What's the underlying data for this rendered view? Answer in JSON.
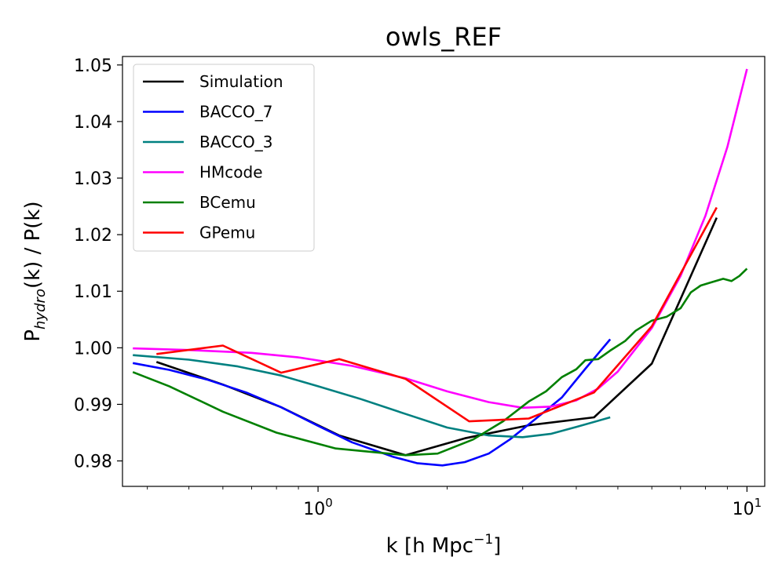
{
  "chart_data": {
    "type": "line",
    "title": "owls_REF",
    "xlabel": "k [h Mpc",
    "xlabel_sup": "−1",
    "xlabel_end": "]",
    "ylabel_main": "P",
    "ylabel_sub": "hydro",
    "ylabel_rest": "(k) / P(k)",
    "xscale": "log",
    "xlim": [
      0.35,
      11.0
    ],
    "ylim": [
      0.9755,
      1.0515
    ],
    "grid": false,
    "legend_position": "top-left",
    "x_ticks": [
      {
        "value": 1,
        "base": "10",
        "exp": "0"
      },
      {
        "value": 10,
        "base": "10",
        "exp": "1"
      }
    ],
    "y_ticks": [
      {
        "value": 0.98,
        "label": "0.98"
      },
      {
        "value": 0.99,
        "label": "0.99"
      },
      {
        "value": 1.0,
        "label": "1.00"
      },
      {
        "value": 1.01,
        "label": "1.01"
      },
      {
        "value": 1.02,
        "label": "1.02"
      },
      {
        "value": 1.03,
        "label": "1.03"
      },
      {
        "value": 1.04,
        "label": "1.04"
      },
      {
        "value": 1.05,
        "label": "1.05"
      }
    ],
    "series": [
      {
        "name": "Simulation",
        "color": "#000000",
        "x": [
          0.42,
          0.6,
          0.82,
          1.12,
          1.6,
          2.2,
          3.1,
          4.4,
          6.0,
          8.5
        ],
        "y": [
          0.9975,
          0.9935,
          0.9895,
          0.9845,
          0.981,
          0.984,
          0.9863,
          0.9877,
          0.9972,
          1.023
        ]
      },
      {
        "name": "BACCO_7",
        "color": "#0000ff",
        "x": [
          0.37,
          0.45,
          0.55,
          0.68,
          0.82,
          1.0,
          1.2,
          1.5,
          1.7,
          1.95,
          2.2,
          2.5,
          2.8,
          3.2,
          3.7,
          4.2,
          4.8
        ],
        "y": [
          0.9973,
          0.9961,
          0.9944,
          0.9921,
          0.9895,
          0.9862,
          0.9833,
          0.9807,
          0.9796,
          0.9792,
          0.9798,
          0.9813,
          0.9838,
          0.9873,
          0.9912,
          0.9963,
          1.0015
        ]
      },
      {
        "name": "BACCO_3",
        "color": "#008080",
        "x": [
          0.37,
          0.5,
          0.65,
          0.82,
          1.0,
          1.25,
          1.6,
          2.0,
          2.5,
          3.0,
          3.5,
          4.0,
          4.8
        ],
        "y": [
          0.9987,
          0.9979,
          0.9967,
          0.9951,
          0.9932,
          0.991,
          0.9883,
          0.9859,
          0.9845,
          0.9842,
          0.9848,
          0.986,
          0.9877
        ]
      },
      {
        "name": "HMcode",
        "color": "#ff00ff",
        "x": [
          0.37,
          0.5,
          0.7,
          0.9,
          1.2,
          1.6,
          2.0,
          2.5,
          3.0,
          3.5,
          4.0,
          4.5,
          5.0,
          6.0,
          7.0,
          8.0,
          9.0,
          10.0
        ],
        "y": [
          0.9999,
          0.9996,
          0.9991,
          0.9983,
          0.9968,
          0.9946,
          0.9923,
          0.9904,
          0.9894,
          0.9896,
          0.9907,
          0.9928,
          0.9958,
          1.0035,
          1.0127,
          1.0233,
          1.0355,
          1.0493
        ]
      },
      {
        "name": "BCemu",
        "color": "#008000",
        "x": [
          0.37,
          0.45,
          0.6,
          0.8,
          1.1,
          1.6,
          1.9,
          2.3,
          2.7,
          3.1,
          3.4,
          3.7,
          4.0,
          4.2,
          4.5,
          4.8,
          5.2,
          5.5,
          6.0,
          6.5,
          7.0,
          7.4,
          7.8,
          8.2,
          8.8,
          9.2,
          9.6,
          10.0
        ],
        "y": [
          0.9957,
          0.9932,
          0.9887,
          0.985,
          0.9822,
          0.981,
          0.9813,
          0.9838,
          0.987,
          0.9905,
          0.9923,
          0.9948,
          0.9962,
          0.9978,
          0.998,
          0.9995,
          1.0012,
          1.003,
          1.0048,
          1.0055,
          1.007,
          1.0098,
          1.011,
          1.0115,
          1.0122,
          1.0118,
          1.0127,
          1.014
        ]
      },
      {
        "name": "GPemu",
        "color": "#ff0000",
        "x": [
          0.42,
          0.6,
          0.82,
          1.12,
          1.6,
          2.25,
          3.1,
          4.4,
          6.0,
          8.5
        ],
        "y": [
          0.9989,
          1.0004,
          0.9956,
          0.998,
          0.9945,
          0.987,
          0.9875,
          0.9921,
          1.0038,
          1.0248
        ]
      }
    ]
  }
}
